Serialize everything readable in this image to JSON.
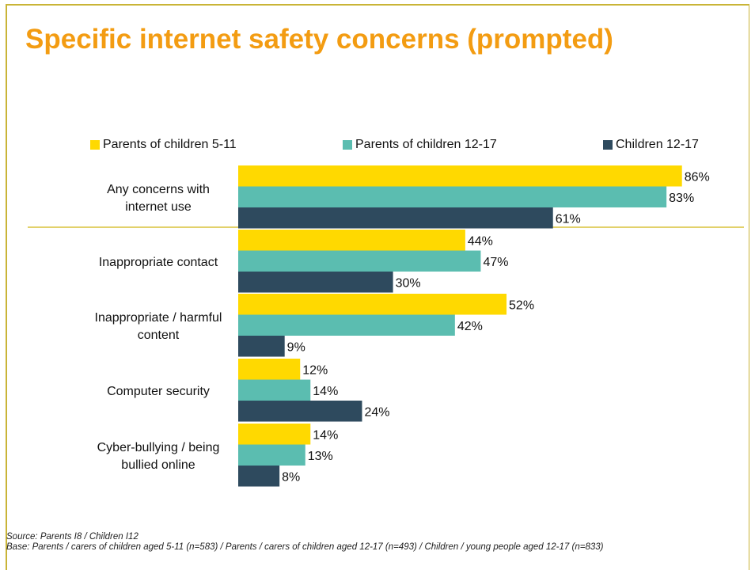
{
  "title": "Specific internet safety concerns (prompted)",
  "chart_data": {
    "type": "bar",
    "orientation": "horizontal",
    "categories": [
      [
        "Any concerns with",
        "internet use"
      ],
      [
        "Inappropriate contact"
      ],
      [
        "Inappropriate / harmful",
        "content"
      ],
      [
        "Computer security"
      ],
      [
        "Cyber-bullying / being",
        "bullied online"
      ]
    ],
    "series": [
      {
        "name": "Parents of children 5-11",
        "color": "#ffd900",
        "values": [
          86,
          44,
          52,
          12,
          14
        ],
        "labels": [
          "86%",
          "44%",
          "52%",
          "12%",
          "14%"
        ]
      },
      {
        "name": "Parents of children 12-17",
        "color": "#5bbdb0",
        "values": [
          83,
          47,
          42,
          14,
          13
        ],
        "labels": [
          "83%",
          "47%",
          "42%",
          "14%",
          "13%"
        ]
      },
      {
        "name": "Children 12-17",
        "color": "#2e4a5e",
        "values": [
          61,
          30,
          9,
          24,
          8
        ],
        "labels": [
          "61%",
          "30%",
          "9%",
          "24%",
          "8%"
        ]
      }
    ],
    "xlim": [
      0,
      100
    ],
    "legend_position": "top",
    "separator_after_first_category": true
  },
  "footer": {
    "source": "Source: Parents I8 / Children I12",
    "base": "Base: Parents / carers of children aged 5-11 (n=583) / Parents / carers of children aged 12-17 (n=493) / Children / young people aged 12-17 (n=833)"
  }
}
